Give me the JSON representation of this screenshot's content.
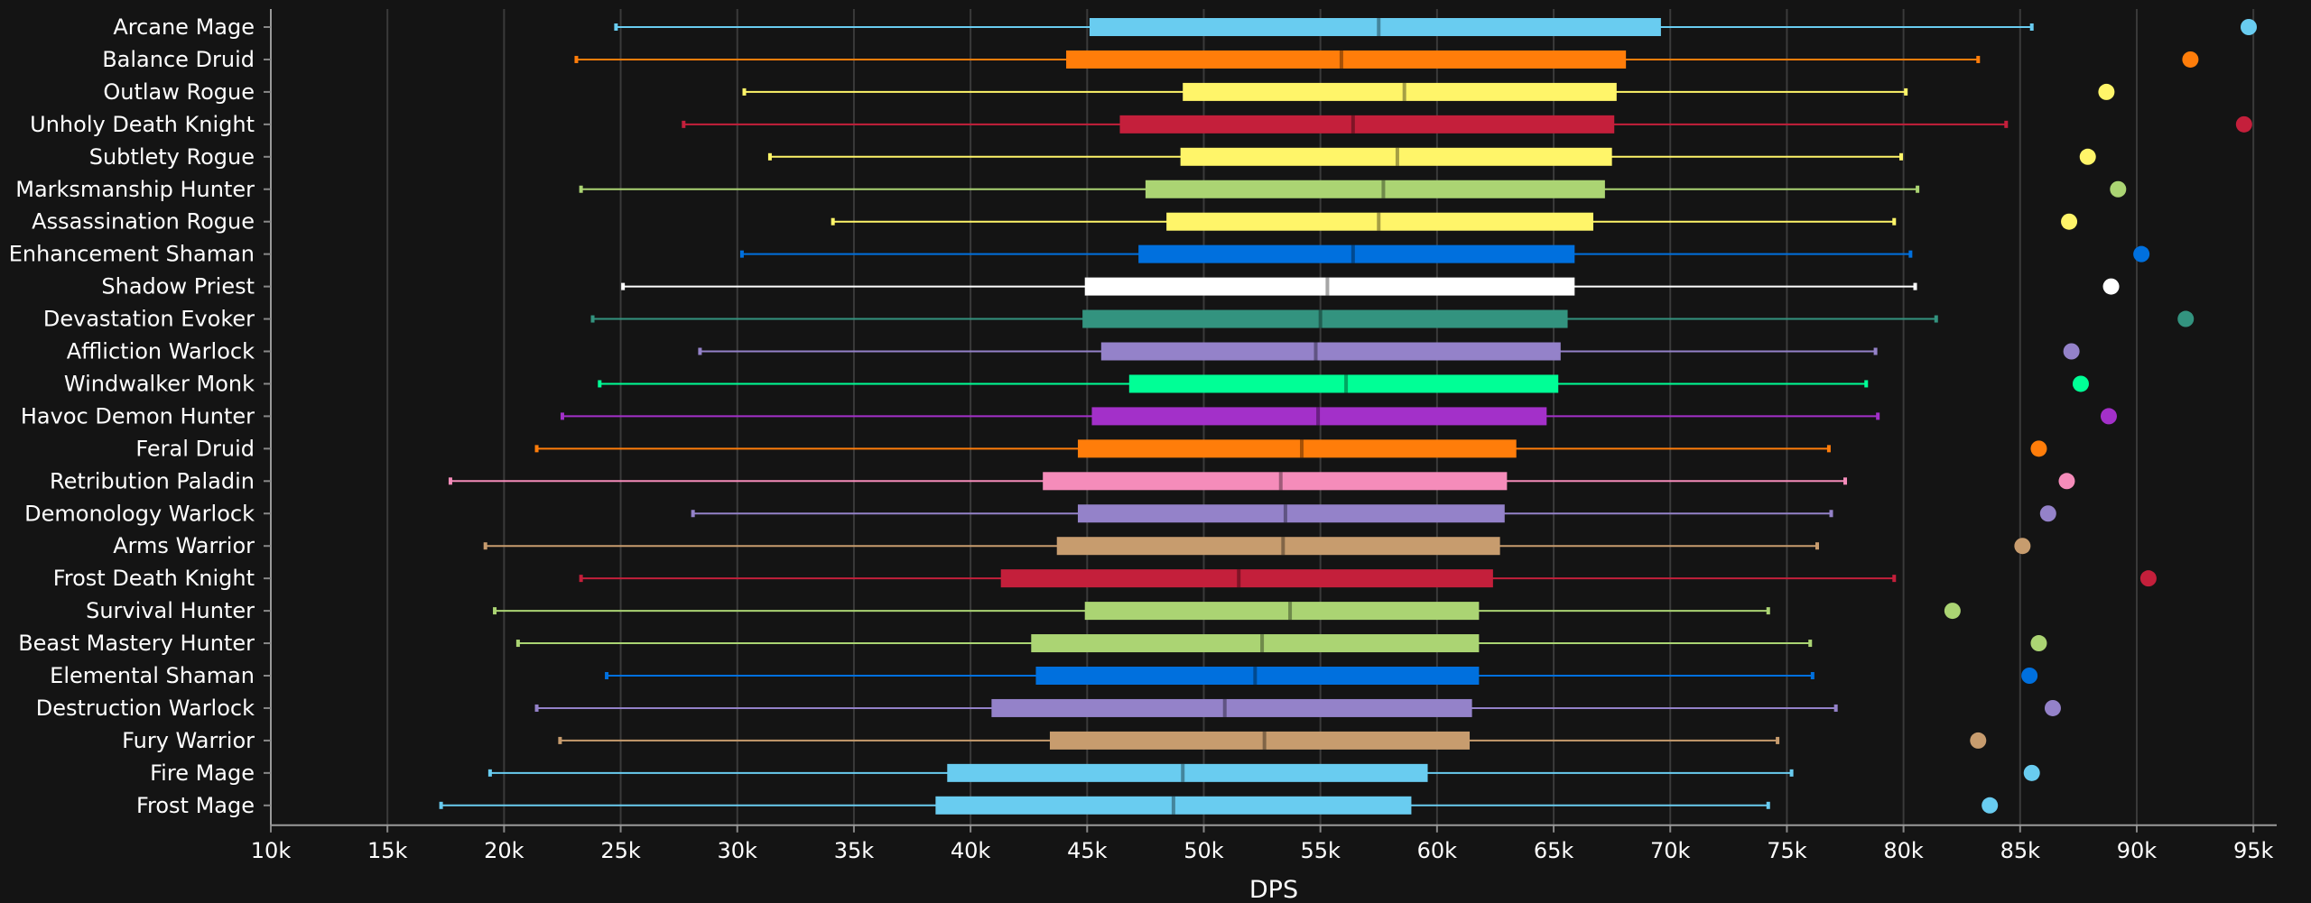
{
  "chart_data": {
    "type": "box",
    "title": "",
    "xlabel": "DPS",
    "ylabel": "",
    "xlim": [
      10000,
      96000
    ],
    "xticks": [
      10000,
      15000,
      20000,
      25000,
      30000,
      35000,
      40000,
      45000,
      50000,
      55000,
      60000,
      65000,
      70000,
      75000,
      80000,
      85000,
      90000,
      95000
    ],
    "xtick_labels": [
      "10k",
      "15k",
      "20k",
      "25k",
      "30k",
      "35k",
      "40k",
      "45k",
      "50k",
      "55k",
      "60k",
      "65k",
      "70k",
      "75k",
      "80k",
      "85k",
      "90k",
      "95k"
    ],
    "grid": "vertical",
    "legend": "none",
    "series": [
      {
        "name": "Arcane Mage",
        "color": "#69CCF0",
        "min": 24800,
        "q1": 45100,
        "median": 57500,
        "q3": 69600,
        "max": 85500,
        "outlier": 94800
      },
      {
        "name": "Balance Druid",
        "color": "#FF7D0A",
        "min": 23100,
        "q1": 44100,
        "median": 55900,
        "q3": 68100,
        "max": 83200,
        "outlier": 92300
      },
      {
        "name": "Outlaw Rogue",
        "color": "#FFF569",
        "min": 30300,
        "q1": 49100,
        "median": 58600,
        "q3": 67700,
        "max": 80100,
        "outlier": 88700
      },
      {
        "name": "Unholy Death Knight",
        "color": "#C41F3B",
        "min": 27700,
        "q1": 46400,
        "median": 56400,
        "q3": 67600,
        "max": 84400,
        "outlier": 94600
      },
      {
        "name": "Subtlety Rogue",
        "color": "#FFF569",
        "min": 31400,
        "q1": 49000,
        "median": 58300,
        "q3": 67500,
        "max": 79900,
        "outlier": 87900
      },
      {
        "name": "Marksmanship Hunter",
        "color": "#ABD473",
        "min": 23300,
        "q1": 47500,
        "median": 57700,
        "q3": 67200,
        "max": 80600,
        "outlier": 89200
      },
      {
        "name": "Assassination Rogue",
        "color": "#FFF569",
        "min": 34100,
        "q1": 48400,
        "median": 57500,
        "q3": 66700,
        "max": 79600,
        "outlier": 87100
      },
      {
        "name": "Enhancement Shaman",
        "color": "#0070DE",
        "min": 30200,
        "q1": 47200,
        "median": 56400,
        "q3": 65900,
        "max": 80300,
        "outlier": 90200
      },
      {
        "name": "Shadow Priest",
        "color": "#FFFFFF",
        "min": 25100,
        "q1": 44900,
        "median": 55300,
        "q3": 65900,
        "max": 80500,
        "outlier": 88900
      },
      {
        "name": "Devastation Evoker",
        "color": "#33937F",
        "min": 23800,
        "q1": 44800,
        "median": 55000,
        "q3": 65600,
        "max": 81400,
        "outlier": 92100
      },
      {
        "name": "Affliction Warlock",
        "color": "#9482C9",
        "min": 28400,
        "q1": 45600,
        "median": 54800,
        "q3": 65300,
        "max": 78800,
        "outlier": 87200
      },
      {
        "name": "Windwalker Monk",
        "color": "#00FF96",
        "min": 24100,
        "q1": 46800,
        "median": 56100,
        "q3": 65200,
        "max": 78400,
        "outlier": 87600
      },
      {
        "name": "Havoc Demon Hunter",
        "color": "#A330C9",
        "min": 22500,
        "q1": 45200,
        "median": 54900,
        "q3": 64700,
        "max": 78900,
        "outlier": 88800
      },
      {
        "name": "Feral Druid",
        "color": "#FF7D0A",
        "min": 21400,
        "q1": 44600,
        "median": 54200,
        "q3": 63400,
        "max": 76800,
        "outlier": 85800
      },
      {
        "name": "Retribution Paladin",
        "color": "#F58CBA",
        "min": 17700,
        "q1": 43100,
        "median": 53300,
        "q3": 63000,
        "max": 77500,
        "outlier": 87000
      },
      {
        "name": "Demonology Warlock",
        "color": "#9482C9",
        "min": 28100,
        "q1": 44600,
        "median": 53500,
        "q3": 62900,
        "max": 76900,
        "outlier": 86200
      },
      {
        "name": "Arms Warrior",
        "color": "#C79C6E",
        "min": 19200,
        "q1": 43700,
        "median": 53400,
        "q3": 62700,
        "max": 76300,
        "outlier": 85100
      },
      {
        "name": "Frost Death Knight",
        "color": "#C41F3B",
        "min": 23300,
        "q1": 41300,
        "median": 51500,
        "q3": 62400,
        "max": 79600,
        "outlier": 90500
      },
      {
        "name": "Survival Hunter",
        "color": "#ABD473",
        "min": 19600,
        "q1": 44900,
        "median": 53700,
        "q3": 61800,
        "max": 74200,
        "outlier": 82100
      },
      {
        "name": "Beast Mastery Hunter",
        "color": "#ABD473",
        "min": 20600,
        "q1": 42600,
        "median": 52500,
        "q3": 61800,
        "max": 76000,
        "outlier": 85800
      },
      {
        "name": "Elemental Shaman",
        "color": "#0070DE",
        "min": 24400,
        "q1": 42800,
        "median": 52200,
        "q3": 61800,
        "max": 76100,
        "outlier": 85400
      },
      {
        "name": "Destruction Warlock",
        "color": "#9482C9",
        "min": 21400,
        "q1": 40900,
        "median": 50900,
        "q3": 61500,
        "max": 77100,
        "outlier": 86400
      },
      {
        "name": "Fury Warrior",
        "color": "#C79C6E",
        "min": 22400,
        "q1": 43400,
        "median": 52600,
        "q3": 61400,
        "max": 74600,
        "outlier": 83200
      },
      {
        "name": "Fire Mage",
        "color": "#69CCF0",
        "min": 19400,
        "q1": 39000,
        "median": 49100,
        "q3": 59600,
        "max": 75200,
        "outlier": 85500
      },
      {
        "name": "Frost Mage",
        "color": "#69CCF0",
        "min": 17300,
        "q1": 38500,
        "median": 48700,
        "q3": 58900,
        "max": 74200,
        "outlier": 83700
      }
    ]
  }
}
